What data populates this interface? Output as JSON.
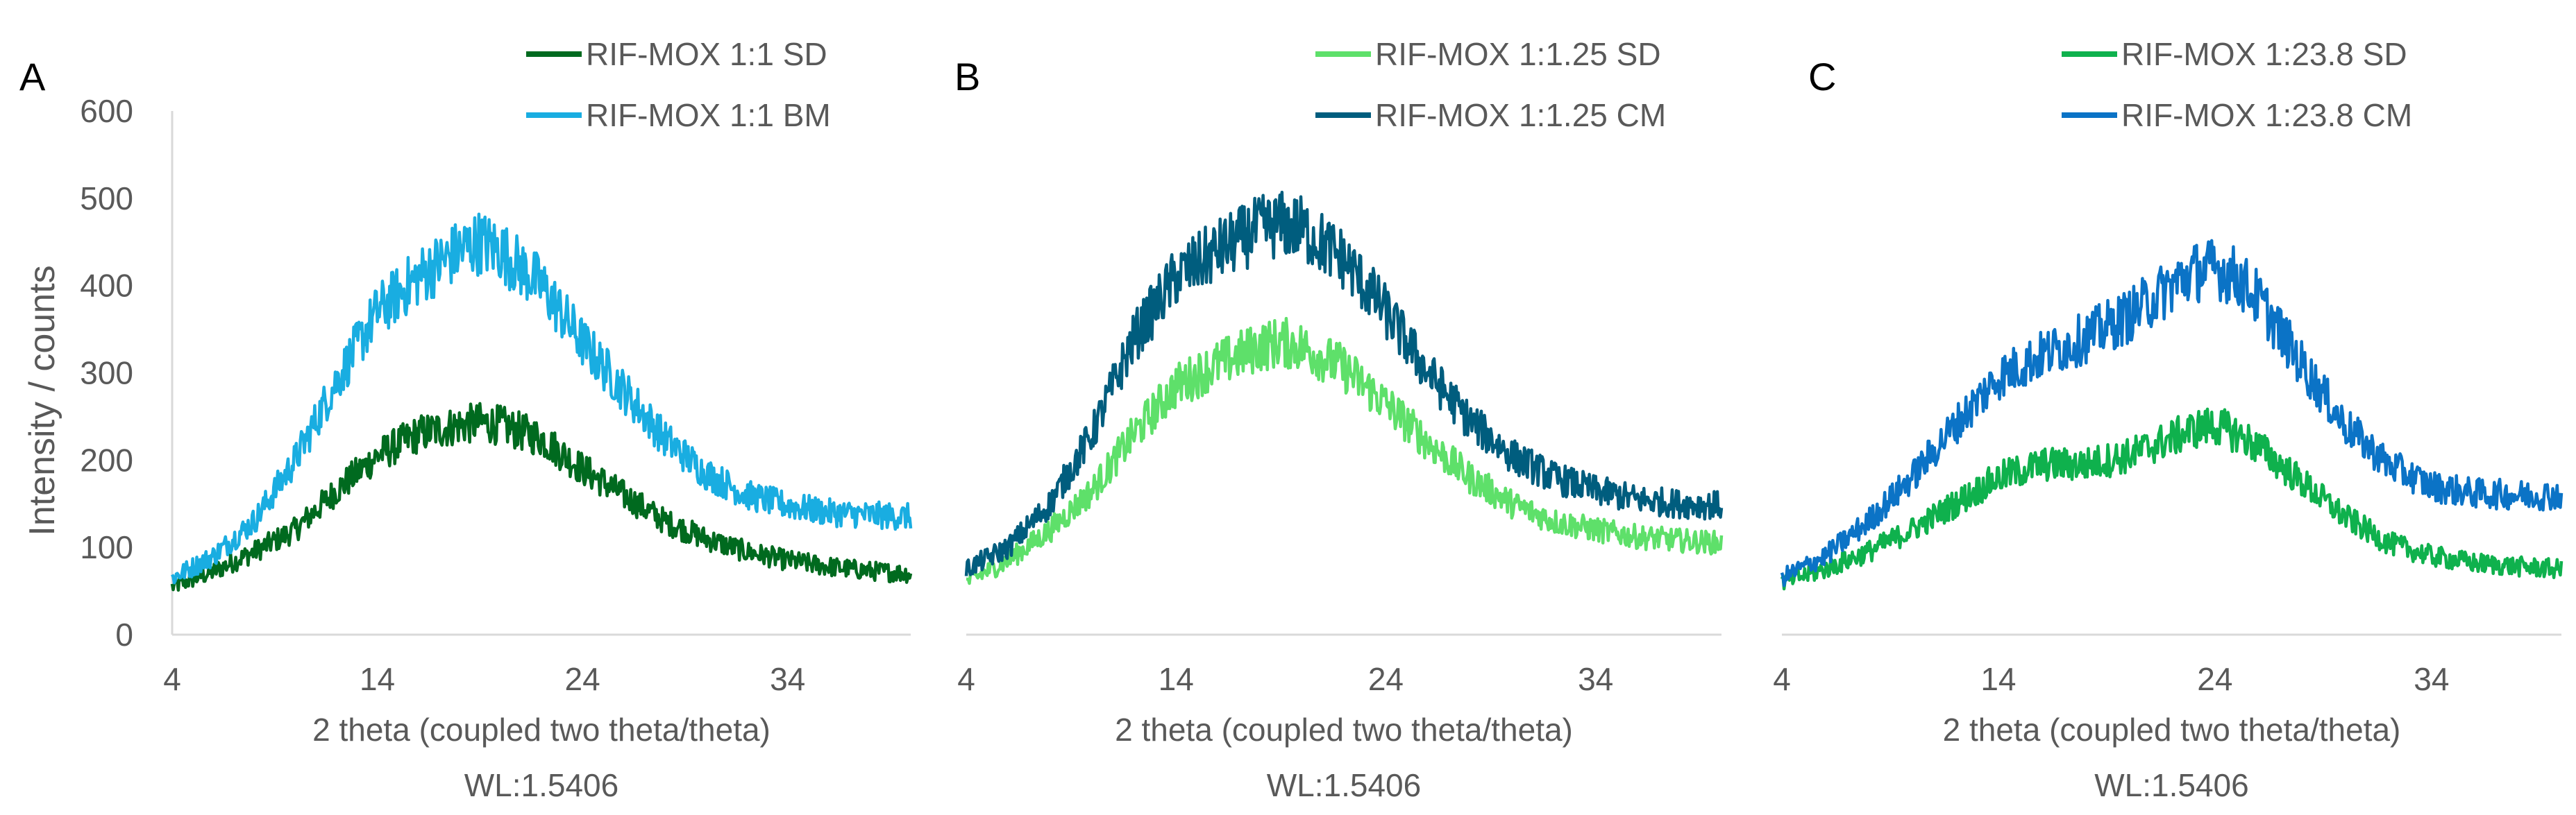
{
  "chart_data": [
    {
      "type": "line",
      "panel_label": "A",
      "xlabel": "2 theta (coupled two theta/theta)",
      "xlabel_line2": "WL:1.5406",
      "ylabel": "Intensity / counts",
      "xlim": [
        4,
        40
      ],
      "ylim": [
        0,
        600
      ],
      "x_ticks": [
        4,
        14,
        24,
        34
      ],
      "y_ticks": [
        0,
        100,
        200,
        300,
        400,
        500,
        600
      ],
      "grid": false,
      "legend_position": "top-center",
      "series": [
        {
          "name": "RIF-MOX 1:1 SD",
          "color": "#006a1f",
          "x": [
            4,
            6,
            8,
            10,
            12,
            14,
            16,
            18,
            19,
            20,
            22,
            24,
            26,
            28,
            30,
            32,
            34,
            36,
            38,
            40
          ],
          "y": [
            55,
            72,
            95,
            120,
            165,
            205,
            230,
            240,
            243,
            240,
            225,
            190,
            160,
            130,
            110,
            95,
            85,
            78,
            73,
            70
          ]
        },
        {
          "name": "RIF-MOX 1:1 BM",
          "color": "#19ade1",
          "x": [
            4,
            6,
            8,
            10,
            12,
            14,
            16,
            18,
            19,
            20,
            22,
            24,
            26,
            28,
            30,
            32,
            34,
            36,
            38,
            40
          ],
          "y": [
            65,
            90,
            130,
            200,
            290,
            370,
            410,
            440,
            450,
            440,
            400,
            335,
            280,
            225,
            185,
            160,
            148,
            140,
            137,
            135
          ]
        }
      ]
    },
    {
      "type": "line",
      "panel_label": "B",
      "xlabel": "2 theta (coupled two theta/theta)",
      "xlabel_line2": "WL:1.5406",
      "ylabel": "",
      "xlim": [
        4,
        40
      ],
      "ylim": [
        0,
        600
      ],
      "x_ticks": [
        4,
        14,
        24,
        34
      ],
      "y_ticks": [],
      "grid": false,
      "legend_position": "top-center",
      "series": [
        {
          "name": "RIF-MOX 1:1.25 SD",
          "color": "#5ee06a",
          "x": [
            4,
            6,
            8,
            10,
            12,
            14,
            16,
            18,
            19,
            20,
            22,
            24,
            26,
            28,
            30,
            32,
            34,
            36,
            38,
            40
          ],
          "y": [
            60,
            85,
            120,
            165,
            230,
            285,
            310,
            330,
            335,
            330,
            305,
            265,
            220,
            180,
            150,
            130,
            120,
            112,
            108,
            105
          ]
        },
        {
          "name": "RIF-MOX 1:1.25 CM",
          "color": "#005d7e",
          "x": [
            4,
            6,
            8,
            10,
            12,
            14,
            16,
            18,
            19,
            20,
            22,
            24,
            26,
            28,
            30,
            32,
            34,
            36,
            38,
            40
          ],
          "y": [
            75,
            100,
            150,
            230,
            340,
            410,
            440,
            465,
            470,
            465,
            430,
            370,
            300,
            245,
            205,
            180,
            165,
            155,
            150,
            148
          ]
        }
      ]
    },
    {
      "type": "line",
      "panel_label": "C",
      "xlabel": "2 theta (coupled two theta/theta)",
      "xlabel_line2": "WL:1.5406",
      "ylabel": "",
      "xlim": [
        4,
        40
      ],
      "ylim": [
        0,
        600
      ],
      "x_ticks": [
        4,
        14,
        24,
        34
      ],
      "y_ticks": [],
      "grid": false,
      "legend_position": "top-center",
      "series": [
        {
          "name": "RIF-MOX 1:23.8 SD",
          "color": "#0fb14d",
          "x": [
            4,
            6,
            8,
            10,
            12,
            14,
            16,
            18,
            20,
            22,
            23,
            24,
            25,
            26,
            28,
            30,
            32,
            34,
            36,
            38,
            40
          ],
          "y": [
            60,
            75,
            95,
            120,
            150,
            180,
            195,
            195,
            205,
            225,
            235,
            240,
            230,
            215,
            175,
            135,
            105,
            90,
            82,
            78,
            75
          ]
        },
        {
          "name": "RIF-MOX 1:23.8 CM",
          "color": "#0b73c6",
          "x": [
            4,
            6,
            8,
            10,
            12,
            14,
            16,
            18,
            20,
            22,
            23,
            24,
            25,
            26,
            28,
            30,
            32,
            34,
            36,
            38,
            40
          ],
          "y": [
            65,
            90,
            130,
            180,
            240,
            295,
            320,
            340,
            365,
            400,
            415,
            420,
            410,
            385,
            310,
            240,
            195,
            170,
            162,
            160,
            160
          ]
        }
      ]
    }
  ]
}
